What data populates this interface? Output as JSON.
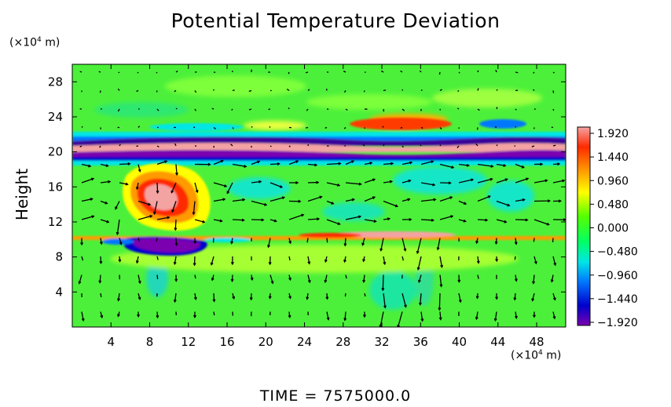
{
  "chart_data": {
    "type": "heatmap",
    "title": "Potential Temperature Deviation",
    "ylabel": "Height",
    "x_unit": {
      "base": "(×10",
      "exp": "4",
      "rest": " m)"
    },
    "y_unit": {
      "base": "(×10",
      "exp": "4",
      "rest": " m)"
    },
    "xlim": [
      0,
      51
    ],
    "ylim": [
      0,
      30
    ],
    "x_ticks": [
      "4",
      "8",
      "12",
      "16",
      "20",
      "24",
      "28",
      "32",
      "36",
      "40",
      "44",
      "48"
    ],
    "y_ticks": [
      "4",
      "8",
      "12",
      "16",
      "20",
      "24",
      "28"
    ],
    "x_tick_values": [
      4,
      8,
      12,
      16,
      20,
      24,
      28,
      32,
      36,
      40,
      44,
      48
    ],
    "y_tick_values": [
      4,
      8,
      12,
      16,
      20,
      24,
      28
    ],
    "colorbar": {
      "labels": [
        "1.920",
        "1.440",
        "0.960",
        "0.480",
        "0.000",
        "−0.480",
        "−0.960",
        "−1.440",
        "−1.920"
      ],
      "values": [
        1.92,
        1.44,
        0.96,
        0.48,
        0.0,
        -0.48,
        -0.96,
        -1.44,
        -1.92
      ],
      "colors": [
        "#f4a3a3",
        "#ff2a00",
        "#ff9a00",
        "#ffff00",
        "#55ff00",
        "#00ff66",
        "#00e6e6",
        "#0077ff",
        "#0000cc",
        "#7a00b0"
      ]
    },
    "features": [
      {
        "label": "warm layer",
        "y_range": [
          20,
          21.5
        ],
        "value": 1.92
      },
      {
        "label": "cold layer",
        "y_range": [
          19,
          20
        ],
        "value": -1.92
      },
      {
        "label": "cold layer",
        "y_range": [
          21.5,
          22.5
        ],
        "value": -1.44
      },
      {
        "label": "warm band",
        "y_range": [
          9.8,
          10.4
        ],
        "value": 1.44
      },
      {
        "label": "cold patch",
        "x_range": [
          6,
          16
        ],
        "y_range": [
          8,
          10
        ],
        "value": -1.92
      },
      {
        "label": "warm patch",
        "x_range": [
          6,
          15
        ],
        "y_range": [
          12,
          18
        ],
        "value": 1.44
      }
    ]
  },
  "footer": {
    "label": "TIME",
    "value": "= 7575000.0"
  }
}
